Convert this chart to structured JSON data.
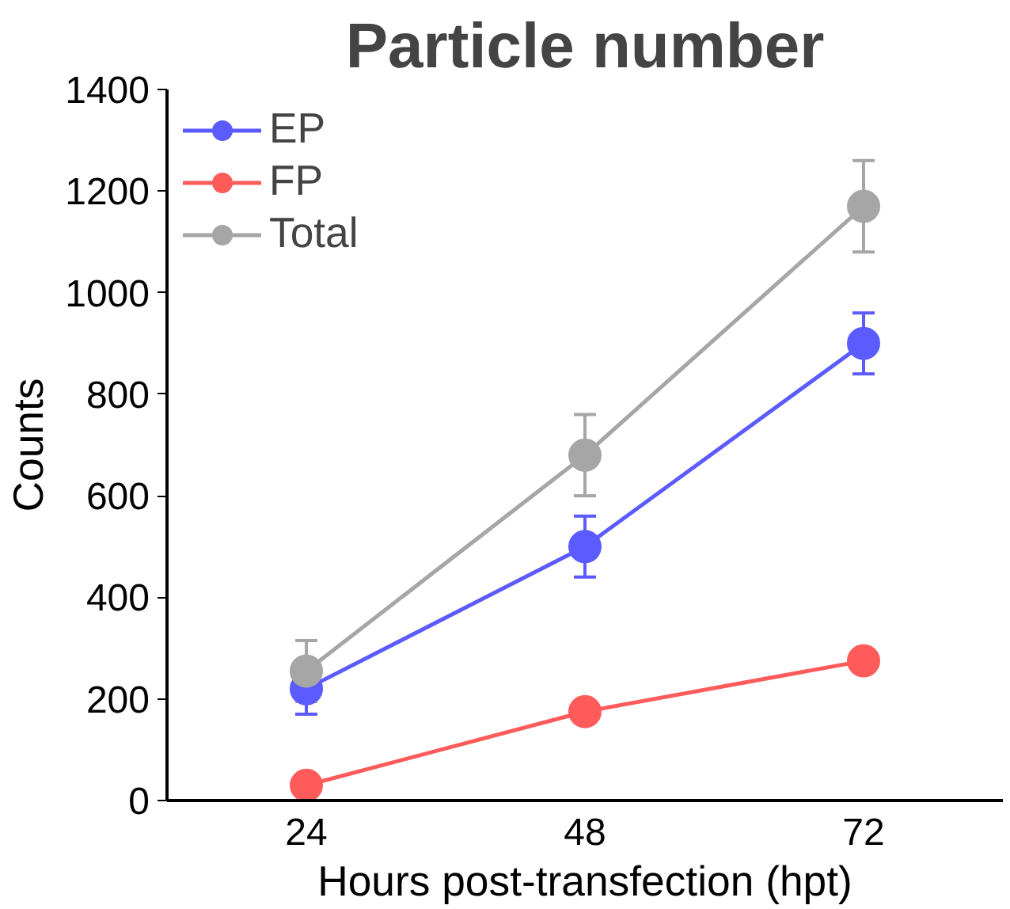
{
  "chart_data": {
    "type": "line",
    "title": "Particle number",
    "xlabel": "Hours post-transfection (hpt)",
    "ylabel": "Counts",
    "categories": [
      "24",
      "48",
      "72"
    ],
    "series": [
      {
        "name": "EP",
        "color": "#5b5bff",
        "values": [
          220,
          500,
          900
        ],
        "errors": [
          50,
          60,
          60
        ]
      },
      {
        "name": "FP",
        "color": "#ff5b5b",
        "values": [
          30,
          175,
          275
        ]
      },
      {
        "name": "Total",
        "color": "#a6a6a6",
        "values": [
          255,
          680,
          1170
        ],
        "errors": [
          60,
          80,
          90
        ]
      }
    ],
    "ylim": [
      0,
      1400
    ],
    "yticks": [
      0,
      200,
      400,
      600,
      800,
      1000,
      1200,
      1400
    ],
    "grid": false,
    "legend": "top left",
    "marker": "circle",
    "line_style": "solid"
  }
}
